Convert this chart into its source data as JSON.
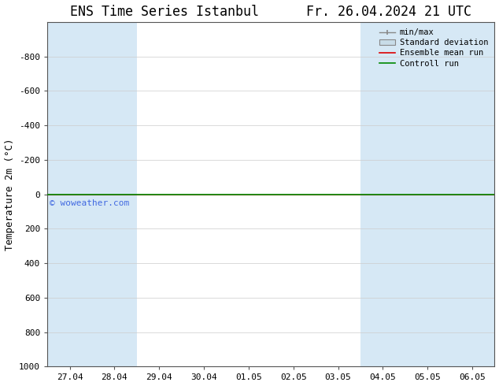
{
  "title": "ENS Time Series Istanbul      Fr. 26.04.2024 21 UTC",
  "ylabel": "Temperature 2m (°C)",
  "watermark": "© woweather.com",
  "yticks": [
    -800,
    -600,
    -400,
    -200,
    0,
    200,
    400,
    600,
    800,
    1000
  ],
  "xtick_labels": [
    "27.04",
    "28.04",
    "29.04",
    "30.04",
    "01.05",
    "02.05",
    "03.05",
    "04.05",
    "05.05",
    "06.05"
  ],
  "x_values": [
    0,
    1,
    2,
    3,
    4,
    5,
    6,
    7,
    8,
    9
  ],
  "shaded_bands": [
    [
      0,
      0.5
    ],
    [
      0.6,
      1.5
    ],
    [
      7.0,
      8.0
    ],
    [
      8.5,
      9.5
    ]
  ],
  "shaded_color": "#d6e8f5",
  "bg_color": "#ffffff",
  "plot_bg_color": "#ffffff",
  "line_y": 0,
  "ensemble_mean_color": "#dd0000",
  "control_run_color": "#008800",
  "minmax_color": "#888888",
  "std_dev_color": "#c8dce8",
  "title_fontsize": 12,
  "tick_fontsize": 8,
  "ylabel_fontsize": 9,
  "watermark_color": "#4169e1",
  "legend_entries": [
    "min/max",
    "Standard deviation",
    "Ensemble mean run",
    "Controll run"
  ],
  "xlim": [
    -0.5,
    9.5
  ],
  "ylim_top": -1000,
  "ylim_bottom": 1000
}
